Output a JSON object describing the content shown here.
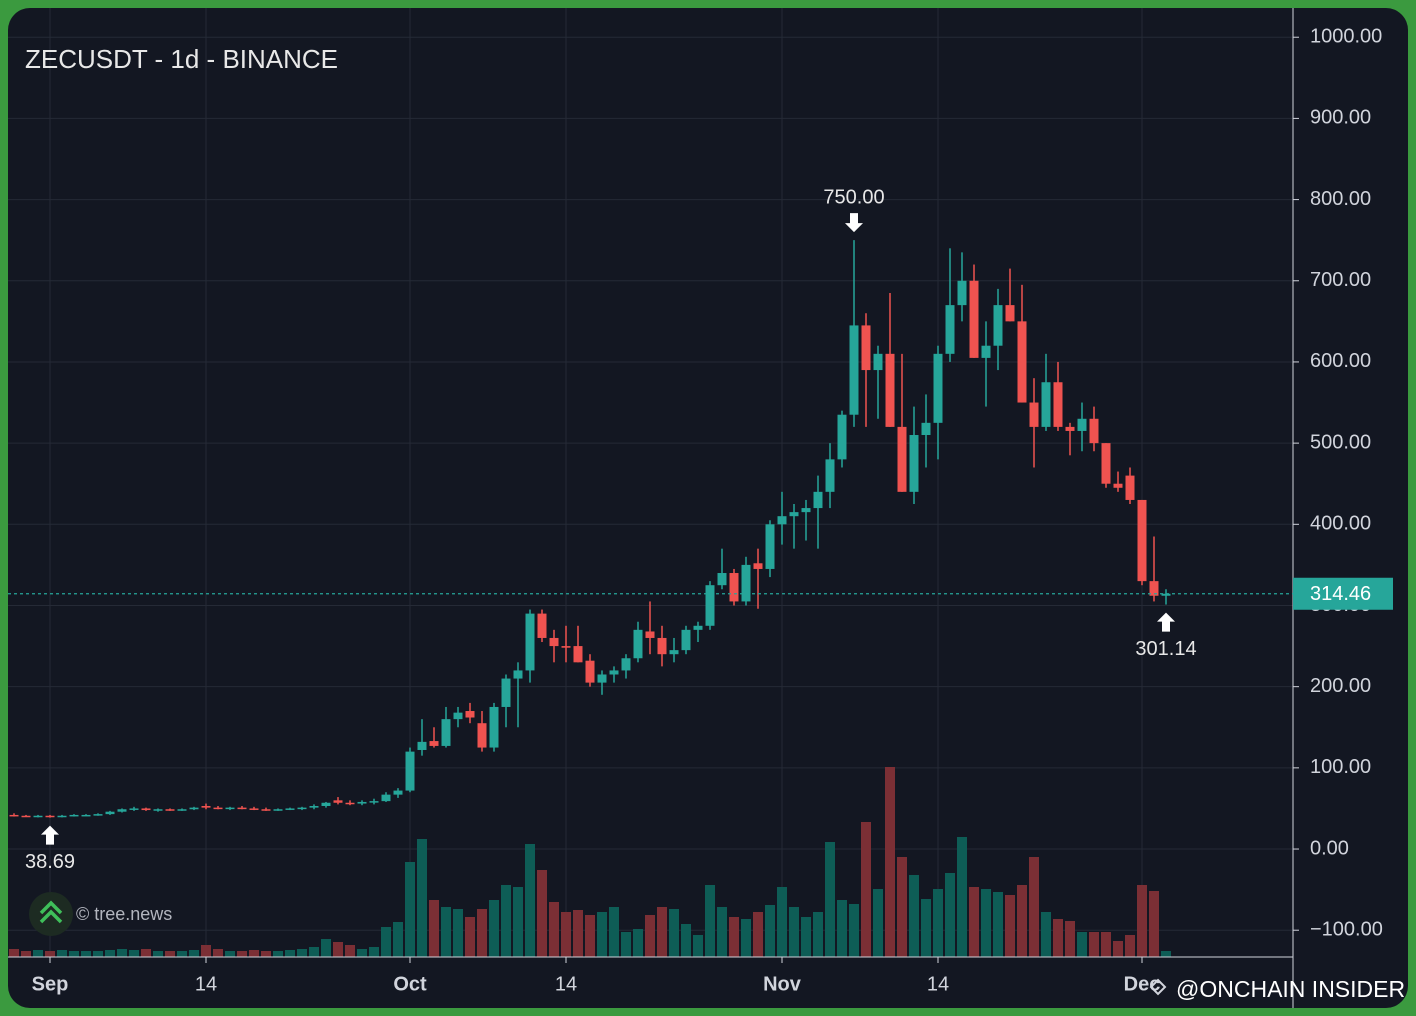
{
  "chart_data": {
    "type": "candlestick",
    "title": "ZECUSDT - 1d - BINANCE",
    "x": [
      "Aug 29",
      "Aug 30",
      "Aug 31",
      "Sep 1",
      "Sep 2",
      "Sep 3",
      "Sep 4",
      "Sep 5",
      "Sep 6",
      "Sep 7",
      "Sep 8",
      "Sep 9",
      "Sep 10",
      "Sep 11",
      "Sep 12",
      "Sep 13",
      "Sep 14",
      "Sep 15",
      "Sep 16",
      "Sep 17",
      "Sep 18",
      "Sep 19",
      "Sep 20",
      "Sep 21",
      "Sep 22",
      "Sep 23",
      "Sep 24",
      "Sep 25",
      "Sep 26",
      "Sep 27",
      "Sep 28",
      "Sep 29",
      "Sep 30",
      "Oct 1",
      "Oct 2",
      "Oct 3",
      "Oct 4",
      "Oct 5",
      "Oct 6",
      "Oct 7",
      "Oct 8",
      "Oct 9",
      "Oct 10",
      "Oct 11",
      "Oct 12",
      "Oct 13",
      "Oct 14",
      "Oct 15",
      "Oct 16",
      "Oct 17",
      "Oct 18",
      "Oct 19",
      "Oct 20",
      "Oct 21",
      "Oct 22",
      "Oct 23",
      "Oct 24",
      "Oct 25",
      "Oct 26",
      "Oct 27",
      "Oct 28",
      "Oct 29",
      "Oct 30",
      "Oct 31",
      "Nov 1",
      "Nov 2",
      "Nov 3",
      "Nov 4",
      "Nov 5",
      "Nov 6",
      "Nov 7",
      "Nov 8",
      "Nov 9",
      "Nov 10",
      "Nov 11",
      "Nov 12",
      "Nov 13",
      "Nov 14",
      "Nov 15",
      "Nov 16",
      "Nov 17",
      "Nov 18",
      "Nov 19",
      "Nov 20",
      "Nov 21",
      "Nov 22",
      "Nov 23",
      "Nov 24",
      "Nov 25",
      "Nov 26",
      "Nov 27",
      "Nov 28",
      "Nov 29",
      "Nov 30",
      "Dec 1",
      "Dec 2",
      "Dec 3"
    ],
    "open": [
      42,
      41,
      40,
      41,
      40,
      41,
      42,
      42,
      43,
      46,
      49,
      50,
      48,
      49,
      48,
      49,
      53,
      51,
      50,
      51,
      50,
      49,
      48,
      49,
      50,
      51,
      53,
      60,
      57,
      56,
      58,
      59,
      67,
      72,
      122,
      133,
      127,
      160,
      170,
      155,
      125,
      175,
      210,
      220,
      290,
      260,
      250,
      250,
      232,
      205,
      215,
      220,
      235,
      268,
      260,
      240,
      245,
      270,
      275,
      325,
      340,
      305,
      352,
      345,
      400,
      410,
      415,
      420,
      440,
      480,
      535,
      645,
      590,
      610,
      520,
      440,
      510,
      525,
      610,
      670,
      700,
      605,
      620,
      670,
      650,
      550,
      520,
      575,
      520,
      515,
      530,
      500,
      450,
      460,
      430,
      330,
      312
    ],
    "high": [
      44,
      42,
      42,
      42,
      42,
      43,
      43,
      44,
      47,
      50,
      52,
      51,
      50,
      50,
      50,
      52,
      56,
      53,
      52,
      53,
      52,
      51,
      50,
      51,
      52,
      55,
      58,
      64,
      60,
      60,
      62,
      70,
      75,
      125,
      160,
      150,
      175,
      175,
      180,
      170,
      180,
      215,
      230,
      295,
      295,
      270,
      275,
      275,
      240,
      220,
      225,
      240,
      280,
      305,
      275,
      260,
      275,
      280,
      330,
      370,
      345,
      360,
      370,
      405,
      440,
      425,
      430,
      460,
      500,
      540,
      750,
      660,
      620,
      685,
      610,
      545,
      560,
      620,
      740,
      735,
      720,
      650,
      690,
      715,
      695,
      580,
      610,
      600,
      525,
      550,
      545,
      500,
      465,
      470,
      430,
      385,
      320
    ],
    "low": [
      40,
      40,
      39,
      38.69,
      39,
      40,
      41,
      41,
      42,
      45,
      47,
      47,
      46,
      47,
      47,
      48,
      49,
      49,
      48,
      49,
      48,
      47,
      47,
      48,
      48,
      49,
      51,
      55,
      54,
      54,
      55,
      58,
      63,
      70,
      115,
      125,
      125,
      150,
      155,
      120,
      120,
      150,
      150,
      205,
      255,
      230,
      230,
      230,
      200,
      190,
      205,
      210,
      230,
      240,
      225,
      230,
      240,
      255,
      270,
      320,
      300,
      300,
      296,
      335,
      375,
      370,
      380,
      370,
      420,
      470,
      520,
      520,
      530,
      520,
      440,
      425,
      470,
      480,
      600,
      650,
      605,
      545,
      590,
      650,
      550,
      470,
      515,
      515,
      485,
      490,
      490,
      445,
      440,
      425,
      325,
      305,
      301.14
    ],
    "close": [
      41,
      40,
      41,
      40,
      41,
      42,
      42,
      43,
      46,
      49,
      50,
      48,
      49,
      48,
      49,
      51,
      51,
      50,
      51,
      50,
      49,
      48,
      49,
      50,
      51,
      53,
      57,
      57,
      56,
      58,
      59,
      67,
      72,
      120,
      132,
      127,
      160,
      168,
      162,
      125,
      175,
      210,
      220,
      290,
      260,
      250,
      248,
      230,
      205,
      215,
      220,
      235,
      270,
      260,
      240,
      245,
      270,
      275,
      325,
      340,
      305,
      350,
      345,
      400,
      410,
      415,
      420,
      440,
      480,
      535,
      645,
      590,
      610,
      520,
      440,
      510,
      525,
      610,
      670,
      700,
      605,
      620,
      670,
      650,
      550,
      520,
      575,
      520,
      515,
      530,
      500,
      450,
      445,
      430,
      330,
      312,
      314.46
    ],
    "volume": [
      8,
      6,
      7,
      6,
      7,
      6,
      6,
      6,
      7,
      8,
      7,
      8,
      6,
      6,
      6,
      7,
      12,
      8,
      6,
      6,
      7,
      6,
      6,
      7,
      8,
      10,
      18,
      15,
      12,
      8,
      10,
      30,
      35,
      95,
      118,
      57,
      50,
      48,
      40,
      48,
      57,
      72,
      70,
      113,
      87,
      55,
      45,
      47,
      42,
      45,
      50,
      25,
      28,
      42,
      50,
      48,
      33,
      22,
      72,
      50,
      40,
      38,
      45,
      52,
      70,
      50,
      40,
      45,
      115,
      57,
      53,
      135,
      68,
      190,
      100,
      82,
      58,
      68,
      84,
      120,
      70,
      68,
      65,
      62,
      72,
      100,
      45,
      38,
      36,
      25,
      25,
      25,
      16,
      22,
      72,
      66,
      6
    ],
    "up_color": "#26a69a",
    "down_color": "#ef5350",
    "volume_up_color": "#0e5d56",
    "volume_down_color": "#7b2f35",
    "ylim": [
      -133,
      1036
    ],
    "yticks": [
      {
        "value": 1000,
        "label": "1000.00"
      },
      {
        "value": 900,
        "label": "900.00"
      },
      {
        "value": 800,
        "label": "800.00"
      },
      {
        "value": 700,
        "label": "700.00"
      },
      {
        "value": 600,
        "label": "600.00"
      },
      {
        "value": 500,
        "label": "500.00"
      },
      {
        "value": 400,
        "label": "400.00"
      },
      {
        "value": 300,
        "label": "300.00"
      },
      {
        "value": 200,
        "label": "200.00"
      },
      {
        "value": 100,
        "label": "100.00"
      },
      {
        "value": 0,
        "label": "0.00"
      },
      {
        "value": -100,
        "label": "−100.00"
      }
    ],
    "xticks": [
      {
        "value": "Sep 1",
        "label": "Sep"
      },
      {
        "value": "Sep 14",
        "label": "14"
      },
      {
        "value": "Oct 1",
        "label": "Oct"
      },
      {
        "value": "Oct 14",
        "label": "14"
      },
      {
        "value": "Nov 1",
        "label": "Nov"
      },
      {
        "value": "Nov 14",
        "label": "14"
      },
      {
        "value": "Dec 1",
        "label": "Dec"
      }
    ],
    "grid": true,
    "annotations": [
      {
        "x": "Nov 7",
        "value": 750,
        "label": "750.00",
        "arrow": "down"
      },
      {
        "x": "Sep 1",
        "value": 38.69,
        "label": "38.69",
        "arrow": "up"
      },
      {
        "x": "Dec 3",
        "value": 301.14,
        "label": "301.14",
        "arrow": "up"
      }
    ],
    "last_price": {
      "value": 314.46,
      "label": "314.46"
    }
  },
  "watermarks": [
    "© tree.news",
    "@ONCHAIN INSIDER"
  ]
}
